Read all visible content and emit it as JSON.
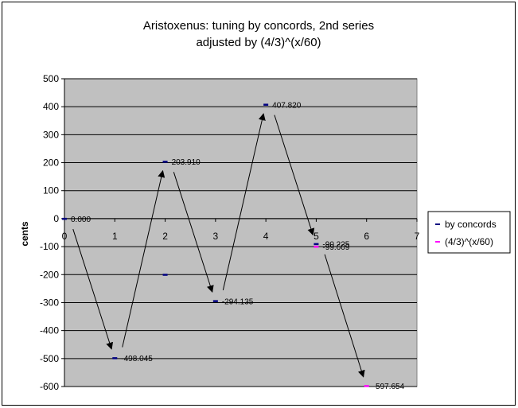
{
  "chart_data": {
    "type": "scatter",
    "title": "Aristoxenus: tuning by concords, 2nd series",
    "subtitle": "adjusted by (4/3)^(x/60)",
    "ylabel": "cents",
    "xlabel": "",
    "xlim": [
      0,
      7
    ],
    "ylim": [
      -600,
      500
    ],
    "x_ticks": [
      0,
      1,
      2,
      3,
      4,
      5,
      6,
      7
    ],
    "y_ticks": [
      500,
      400,
      300,
      200,
      100,
      0,
      -100,
      -200,
      -300,
      -400,
      -500,
      -600
    ],
    "grid": true,
    "legend_position": "right",
    "series": [
      {
        "name": "by concords",
        "color": "#000080",
        "points": [
          {
            "x": 0,
            "y": 0
          },
          {
            "x": 1,
            "y": -498.045
          },
          {
            "x": 2,
            "y": 203.91
          },
          {
            "x": 2,
            "y": -200
          },
          {
            "x": 3,
            "y": -294.135
          },
          {
            "x": 4,
            "y": 407.82
          },
          {
            "x": 5,
            "y": -90.225
          }
        ]
      },
      {
        "name": "(4/3)^(x/60)",
        "color": "#ff00ff",
        "points": [
          {
            "x": 5,
            "y": -99.609
          },
          {
            "x": 6,
            "y": -597.654
          }
        ]
      }
    ],
    "data_labels": [
      {
        "x": 0,
        "y": 0,
        "text": "0.000"
      },
      {
        "x": 1,
        "y": -498.045,
        "text": "-498.045"
      },
      {
        "x": 2,
        "y": 203.91,
        "text": "203.910"
      },
      {
        "x": 3,
        "y": -294.135,
        "text": "-294.135"
      },
      {
        "x": 4,
        "y": 407.82,
        "text": "407.820"
      },
      {
        "x": 5,
        "y": -90.225,
        "text": "-90.225"
      },
      {
        "x": 5,
        "y": -99.609,
        "text": "-99.609"
      },
      {
        "x": 6,
        "y": -597.654,
        "text": "-597.654"
      }
    ],
    "arrows": [
      {
        "from": [
          0,
          0
        ],
        "to": [
          1,
          -498.045
        ]
      },
      {
        "from": [
          1,
          -498.045
        ],
        "to": [
          2,
          203.91
        ]
      },
      {
        "from": [
          2,
          203.91
        ],
        "to": [
          3,
          -294.135
        ]
      },
      {
        "from": [
          3,
          -294.135
        ],
        "to": [
          4,
          407.82
        ]
      },
      {
        "from": [
          4,
          407.82
        ],
        "to": [
          5,
          -90.225
        ]
      },
      {
        "from": [
          5,
          -90.225
        ],
        "to": [
          6,
          -597.654
        ]
      }
    ],
    "colors": {
      "plot_background": "#c0c0c0",
      "gridline": "#000000",
      "arrow": "#000000"
    }
  }
}
